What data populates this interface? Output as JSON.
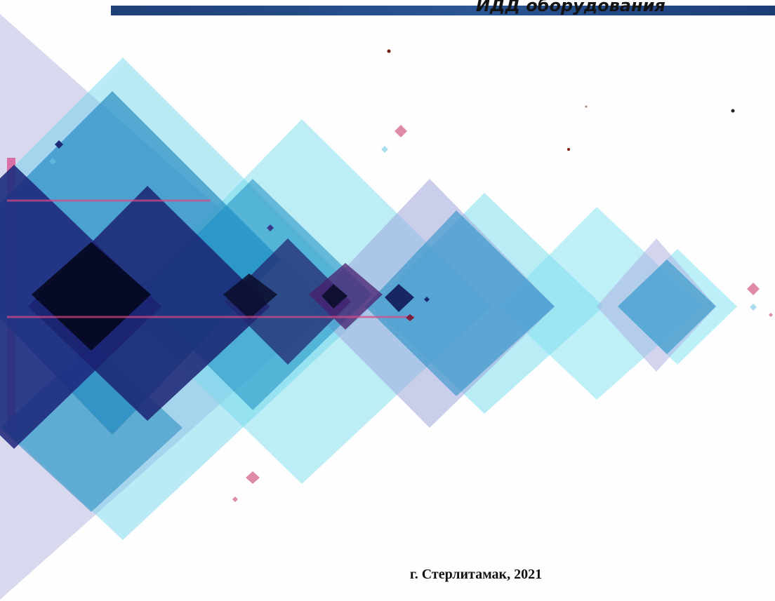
{
  "header": {
    "title_fragment": "ИДД оборудования"
  },
  "footer": {
    "city_year": "г. Стерлитамак, 2021"
  },
  "colors": {
    "header_bar": "#2a5694",
    "diamond_light": "#7fdbe9",
    "diamond_mid": "#1e8fc2",
    "diamond_dark": "#1a237a",
    "accent_pink": "#d94f86"
  }
}
